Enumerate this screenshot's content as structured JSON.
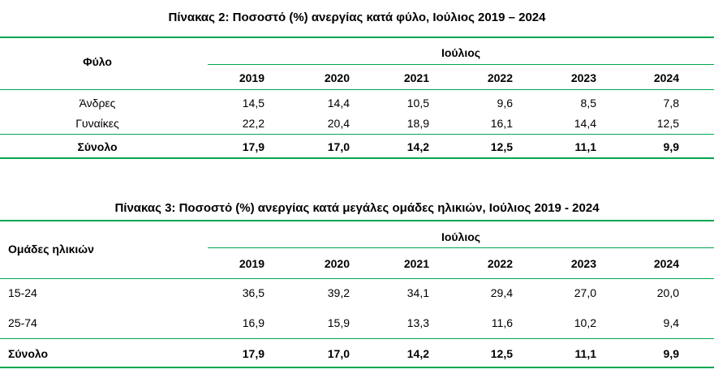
{
  "table2": {
    "title": "Πίνακας 2: Ποσοστό (%) ανεργίας κατά φύλο, Ιούλιος 2019 – 2024",
    "row_header": "Φύλο",
    "group_header": "Ιούλιος",
    "years": [
      "2019",
      "2020",
      "2021",
      "2022",
      "2023",
      "2024"
    ],
    "rows": [
      {
        "label": "Άνδρες",
        "values": [
          "14,5",
          "14,4",
          "10,5",
          "9,6",
          "8,5",
          "7,8"
        ]
      },
      {
        "label": "Γυναίκες",
        "values": [
          "22,2",
          "20,4",
          "18,9",
          "16,1",
          "14,4",
          "12,5"
        ]
      }
    ],
    "total": {
      "label": "Σύνολο",
      "values": [
        "17,9",
        "17,0",
        "14,2",
        "12,5",
        "11,1",
        "9,9"
      ]
    }
  },
  "table3": {
    "title": "Πίνακας 3: Ποσοστό (%) ανεργίας κατά μεγάλες ομάδες ηλικιών, Ιούλιος 2019 - 2024",
    "row_header": "Ομάδες ηλικιών",
    "group_header": "Ιούλιος",
    "years": [
      "2019",
      "2020",
      "2021",
      "2022",
      "2023",
      "2024"
    ],
    "rows": [
      {
        "label": "15-24",
        "values": [
          "36,5",
          "39,2",
          "34,1",
          "29,4",
          "27,0",
          "20,0"
        ]
      },
      {
        "label": "25-74",
        "values": [
          "16,9",
          "15,9",
          "13,3",
          "11,6",
          "10,2",
          "9,4"
        ]
      }
    ],
    "total": {
      "label": "Σύνολο",
      "values": [
        "17,9",
        "17,0",
        "14,2",
        "12,5",
        "11,1",
        "9,9"
      ]
    }
  },
  "colors": {
    "rule": "#00a651",
    "text": "#000000",
    "background": "#ffffff"
  }
}
